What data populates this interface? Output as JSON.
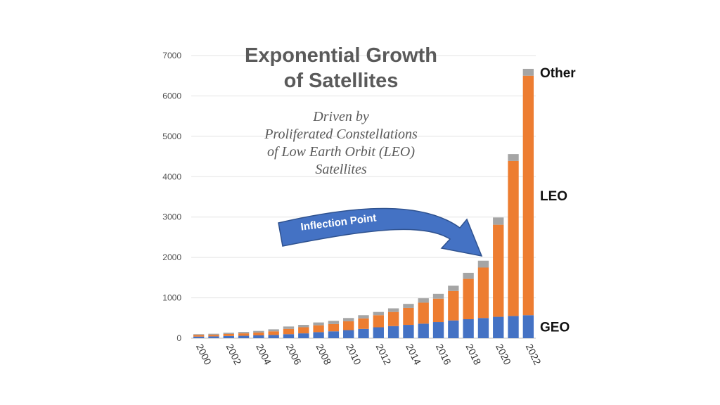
{
  "chart_data": {
    "type": "bar",
    "stacked": true,
    "title": "Exponential Growth of Satellites",
    "title_lines": [
      "Exponential Growth",
      "of Satellites"
    ],
    "subtitle": "Driven by Proliferated Constellations of Low Earth Orbit (LEO) Satellites",
    "subtitle_lines": [
      "Driven by",
      "Proliferated Constellations",
      "of Low Earth Orbit (LEO)",
      "Satellites"
    ],
    "annotation": "Inflection Point",
    "x": [
      2000,
      2001,
      2002,
      2003,
      2004,
      2005,
      2006,
      2007,
      2008,
      2009,
      2010,
      2011,
      2012,
      2013,
      2014,
      2015,
      2016,
      2017,
      2018,
      2019,
      2020,
      2021,
      2022
    ],
    "x_tick_labels": [
      "2000",
      "2002",
      "2004",
      "2006",
      "2008",
      "2010",
      "2012",
      "2014",
      "2016",
      "2018",
      "2020",
      "2022"
    ],
    "ylim": [
      0,
      7000
    ],
    "y_ticks": [
      0,
      1000,
      2000,
      3000,
      4000,
      5000,
      6000,
      7000
    ],
    "grid": true,
    "series": [
      {
        "name": "GEO",
        "color": "#4472c4",
        "values": [
          40,
          45,
          55,
          60,
          70,
          80,
          100,
          120,
          150,
          170,
          200,
          230,
          270,
          300,
          330,
          360,
          400,
          440,
          470,
          500,
          530,
          550,
          570
        ]
      },
      {
        "name": "LEO",
        "color": "#ed7d31",
        "values": [
          40,
          40,
          50,
          60,
          70,
          90,
          130,
          150,
          170,
          180,
          220,
          260,
          300,
          350,
          420,
          520,
          580,
          730,
          1000,
          1250,
          2280,
          3840,
          5930
        ]
      },
      {
        "name": "Other",
        "color": "#a5a5a5",
        "values": [
          20,
          25,
          30,
          35,
          40,
          50,
          60,
          60,
          70,
          80,
          80,
          80,
          80,
          90,
          100,
          110,
          120,
          130,
          150,
          170,
          180,
          170,
          170
        ]
      }
    ]
  }
}
